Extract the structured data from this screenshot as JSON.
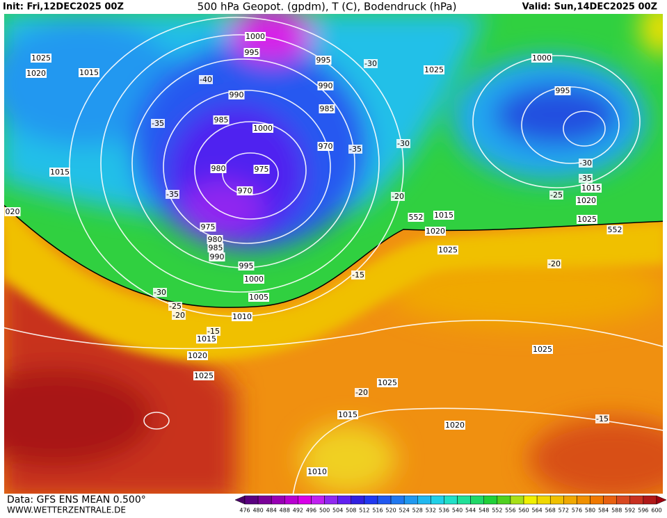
{
  "header": {
    "init": "Init: Fri,12DEC2025 00Z",
    "title": "500 hPa Geopot. (gpdm), T (C), Bodendruck (hPa)",
    "valid": "Valid: Sun,14DEC2025 00Z"
  },
  "footer": {
    "source": "Data: GFS ENS MEAN 0.500°",
    "website": "WWW.WETTERZENTRALE.DE"
  },
  "map_labels": {
    "isobars": [
      "1000",
      "995",
      "995",
      "1025",
      "1020",
      "1015",
      "990",
      "990",
      "985",
      "985",
      "1000",
      "970",
      "980",
      "975",
      "970",
      "975",
      "980",
      "985",
      "990",
      "995",
      "1000",
      "1005",
      "1010",
      "1015",
      "1020",
      "1025",
      "1015",
      "020",
      "1025",
      "1000",
      "995",
      "1015",
      "1020",
      "1025",
      "1015",
      "1020",
      "1025",
      "1025",
      "1025",
      "1020",
      "1015",
      "1010"
    ],
    "temperatures": [
      "-30",
      "-40",
      "-35",
      "-35",
      "-30",
      "-20",
      "-35",
      "-15",
      "-30",
      "-25",
      "-20",
      "-15",
      "-20",
      "-15",
      "-30",
      "-35",
      "-25",
      "-20"
    ],
    "heights": [
      "552",
      "552"
    ]
  },
  "colorbar": {
    "labels": [
      476,
      480,
      484,
      488,
      492,
      496,
      500,
      504,
      508,
      512,
      516,
      520,
      524,
      528,
      532,
      536,
      540,
      544,
      548,
      552,
      556,
      560,
      564,
      568,
      572,
      576,
      580,
      584,
      588,
      592,
      596,
      600
    ],
    "colors": [
      "#4a0068",
      "#5a0080",
      "#7a0098",
      "#9800b4",
      "#b800d0",
      "#d800e8",
      "#c020f0",
      "#9028f0",
      "#6020f0",
      "#3020e0",
      "#2038f0",
      "#2058f0",
      "#2078f0",
      "#2098f0",
      "#20b8f0",
      "#20d0e8",
      "#20e0c8",
      "#20e098",
      "#20d868",
      "#20d038",
      "#50d020",
      "#a8e018",
      "#f0f000",
      "#f0d800",
      "#f0c000",
      "#f0a800",
      "#f09000",
      "#f07800",
      "#e86010",
      "#d84820",
      "#c83020",
      "#b01818",
      "#a00010"
    ]
  }
}
